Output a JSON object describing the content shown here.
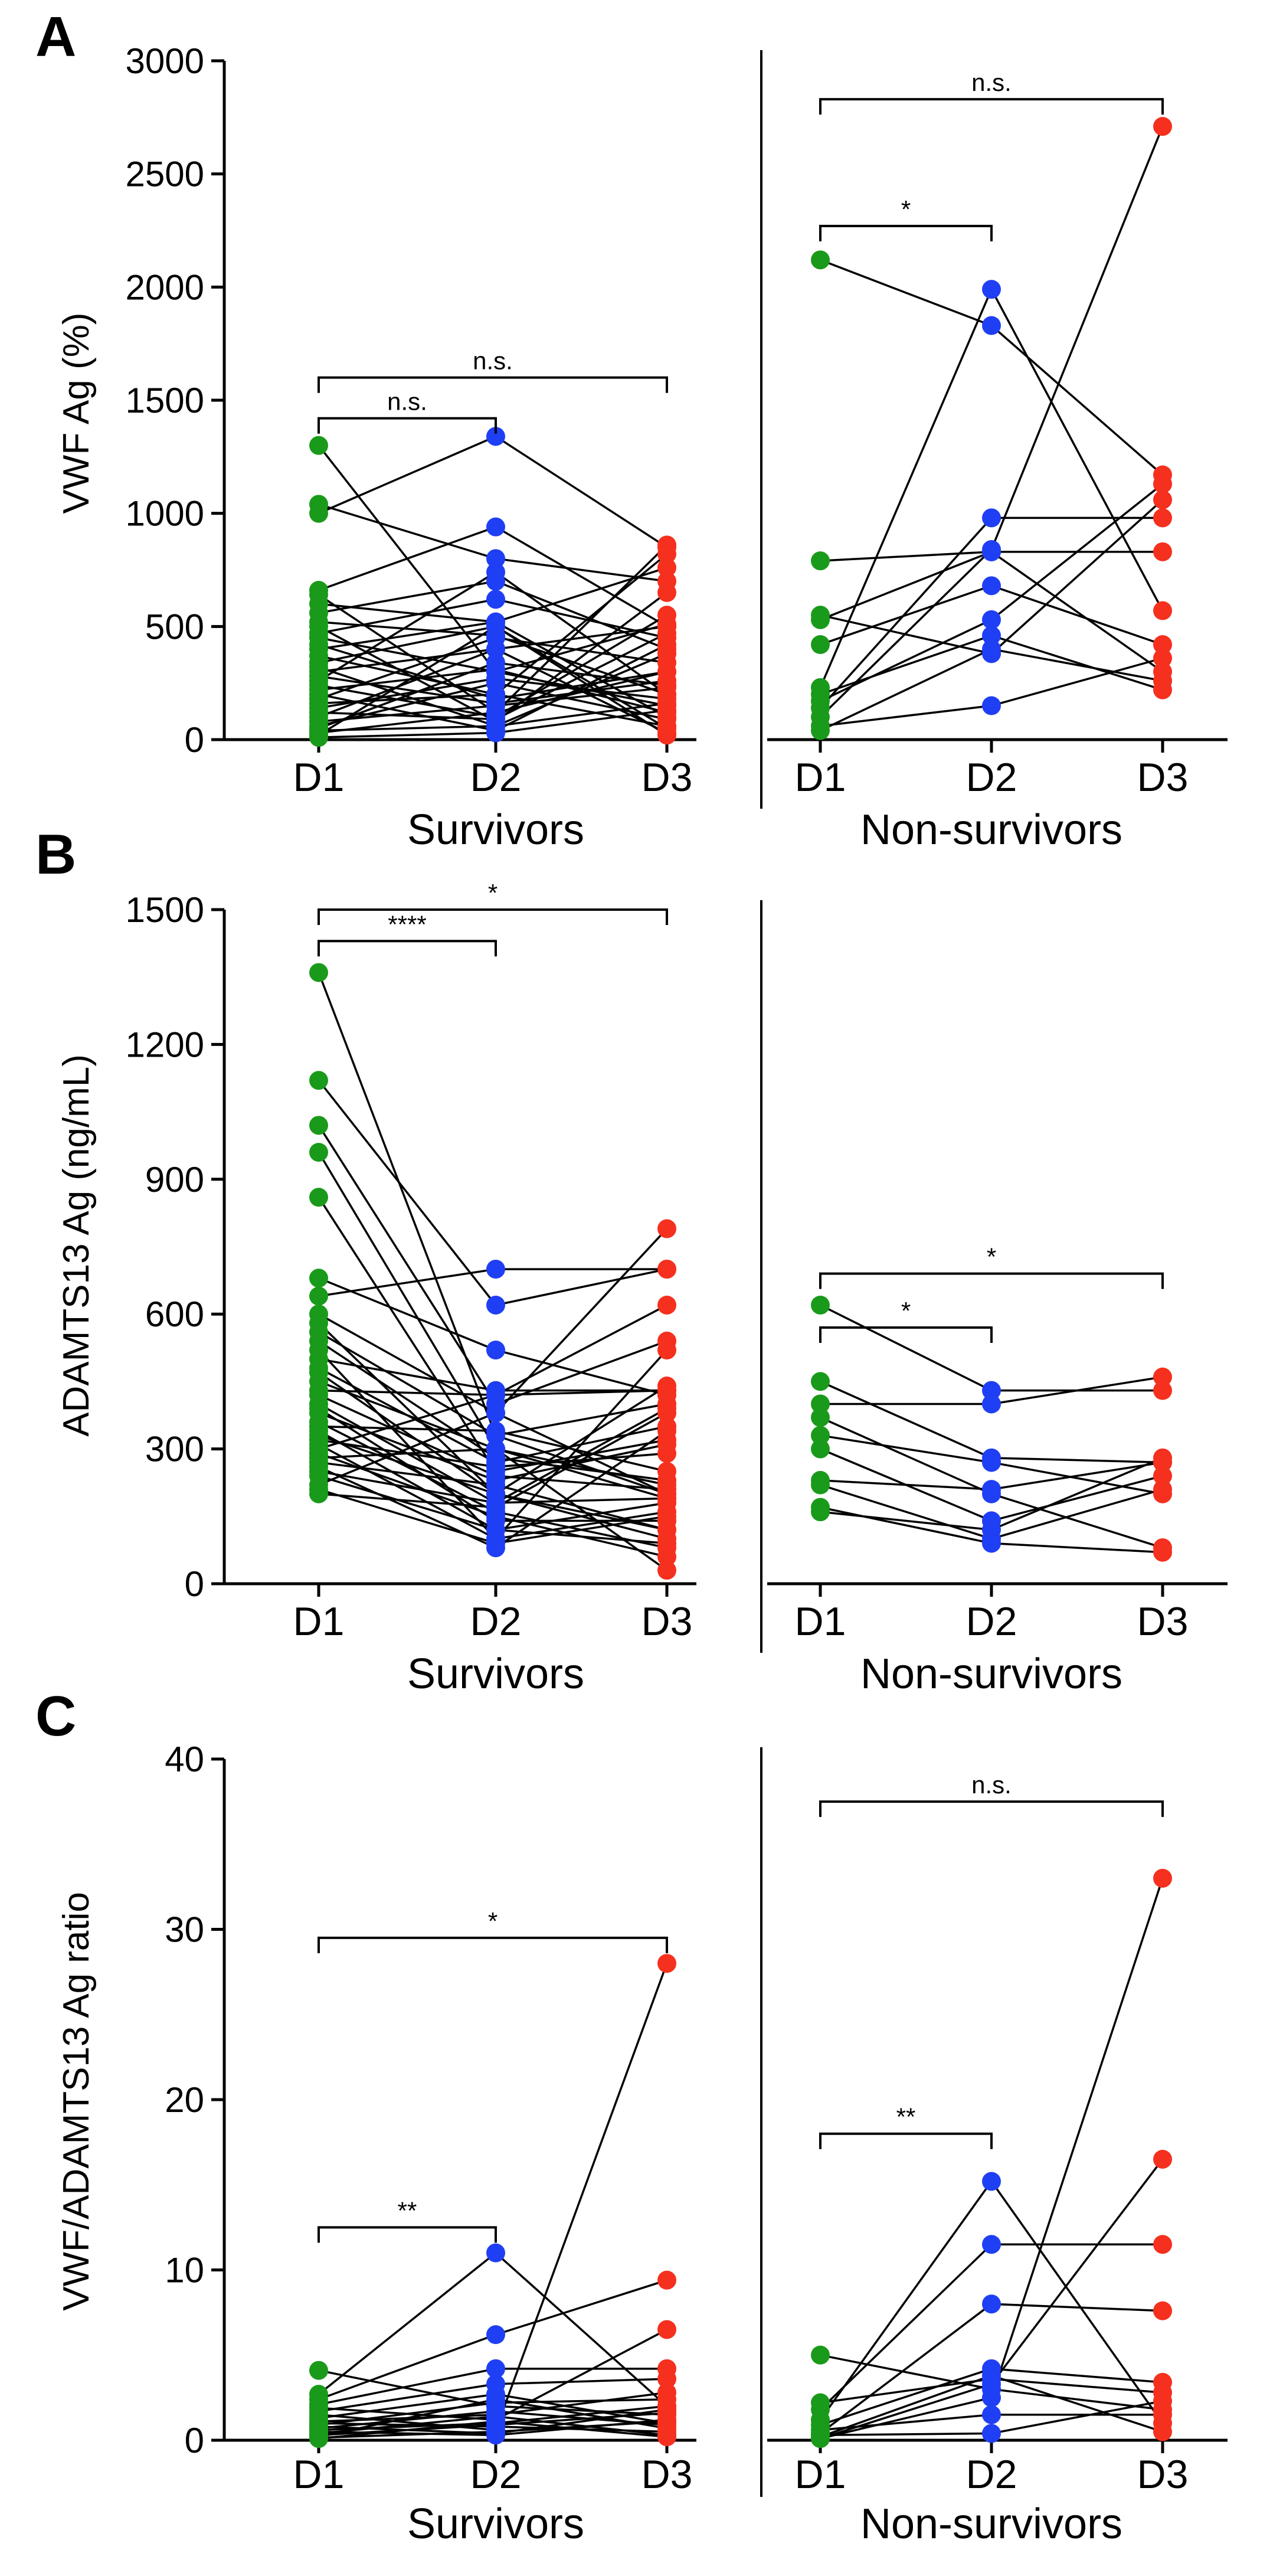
{
  "figure": {
    "colors": {
      "D1": "#1a9a1a",
      "D2": "#1f3ff5",
      "D3": "#f5301e",
      "lines": "#000000"
    }
  },
  "chart_data": [
    {
      "panel": "A",
      "type": "scatter",
      "ylabel": "VWF Ag (%)",
      "ylim": [
        0,
        3000
      ],
      "yticks": [
        0,
        500,
        1000,
        1500,
        2000,
        2500,
        3000
      ],
      "categories": [
        "D1",
        "D2",
        "D3"
      ],
      "groups": [
        {
          "name": "Survivors",
          "pairs": [
            [
              1300,
              300,
              150
            ],
            [
              1040,
              800,
              700
            ],
            [
              1000,
              1340,
              850
            ],
            [
              660,
              940,
              500
            ],
            [
              640,
              120,
              860
            ],
            [
              600,
              520,
              760
            ],
            [
              560,
              700,
              400
            ],
            [
              520,
              460,
              200
            ],
            [
              500,
              80,
              650
            ],
            [
              470,
              620,
              450
            ],
            [
              450,
              300,
              510
            ],
            [
              420,
              180,
              300
            ],
            [
              400,
              520,
              100
            ],
            [
              370,
              200,
              820
            ],
            [
              340,
              500,
              50
            ],
            [
              320,
              60,
              380
            ],
            [
              300,
              400,
              500
            ],
            [
              280,
              160,
              260
            ],
            [
              260,
              740,
              200
            ],
            [
              240,
              100,
              550
            ],
            [
              220,
              310,
              120
            ],
            [
              200,
              40,
              420
            ],
            [
              180,
              450,
              340
            ],
            [
              160,
              200,
              60
            ],
            [
              140,
              270,
              180
            ],
            [
              120,
              90,
              470
            ],
            [
              100,
              400,
              30
            ],
            [
              80,
              150,
              230
            ],
            [
              60,
              250,
              90
            ],
            [
              40,
              60,
              160
            ],
            [
              30,
              120,
              300
            ],
            [
              20,
              500,
              20
            ],
            [
              10,
              30,
              130
            ],
            [
              50,
              340,
              240
            ]
          ],
          "significance": [
            {
              "from": "D1",
              "to": "D2",
              "label": "n.s.",
              "y": 1420
            },
            {
              "from": "D1",
              "to": "D3",
              "label": "n.s.",
              "y": 1600
            }
          ]
        },
        {
          "name": "Non-survivors",
          "pairs": [
            [
              2120,
              1830,
              1170
            ],
            [
              790,
              830,
              830
            ],
            [
              550,
              380,
              1060
            ],
            [
              530,
              830,
              300
            ],
            [
              420,
              680,
              420
            ],
            [
              230,
              1990,
              570
            ],
            [
              200,
              460,
              220
            ],
            [
              170,
              530,
              1130
            ],
            [
              140,
              980,
              980
            ],
            [
              100,
              840,
              2710
            ],
            [
              60,
              150,
              360
            ],
            [
              40,
              400,
              260
            ]
          ],
          "significance": [
            {
              "from": "D1",
              "to": "D2",
              "label": "*",
              "y": 2270
            },
            {
              "from": "D1",
              "to": "D3",
              "label": "n.s.",
              "y": 2830
            }
          ]
        }
      ]
    },
    {
      "panel": "B",
      "type": "scatter",
      "ylabel": "ADAMTS13 Ag (ng/mL)",
      "ylim": [
        0,
        1500
      ],
      "yticks": [
        0,
        300,
        600,
        900,
        1200,
        1500
      ],
      "categories": [
        "D1",
        "D2",
        "D3"
      ],
      "groups": [
        {
          "name": "Survivors",
          "pairs": [
            [
              1360,
              330,
              200
            ],
            [
              1120,
              620,
              700
            ],
            [
              1020,
              400,
              540
            ],
            [
              960,
              300,
              190
            ],
            [
              860,
              250,
              320
            ],
            [
              680,
              520,
              420
            ],
            [
              640,
              700,
              700
            ],
            [
              600,
              380,
              790
            ],
            [
              580,
              200,
              100
            ],
            [
              560,
              330,
              400
            ],
            [
              540,
              280,
              230
            ],
            [
              520,
              100,
              520
            ],
            [
              500,
              430,
              430
            ],
            [
              480,
              270,
              350
            ],
            [
              470,
              200,
              120
            ],
            [
              450,
              300,
              30
            ],
            [
              430,
              420,
              620
            ],
            [
              420,
              240,
              210
            ],
            [
              400,
              180,
              390
            ],
            [
              390,
              140,
              140
            ],
            [
              380,
              230,
              310
            ],
            [
              360,
              160,
              80
            ],
            [
              350,
              340,
              250
            ],
            [
              340,
              120,
              180
            ],
            [
              330,
              200,
              440
            ],
            [
              320,
              260,
              290
            ],
            [
              310,
              100,
              160
            ],
            [
              300,
              420,
              430
            ],
            [
              290,
              150,
              60
            ],
            [
              280,
              300,
              220
            ],
            [
              270,
              220,
              120
            ],
            [
              260,
              80,
              340
            ],
            [
              250,
              180,
              190
            ],
            [
              240,
              120,
              90
            ],
            [
              220,
              380,
              200
            ],
            [
              210,
              90,
              150
            ],
            [
              200,
              170,
              380
            ]
          ],
          "significance": [
            {
              "from": "D1",
              "to": "D2",
              "label": "****",
              "y": 1430
            },
            {
              "from": "D1",
              "to": "D3",
              "label": "*",
              "y": 1500
            }
          ]
        },
        {
          "name": "Non-survivors",
          "pairs": [
            [
              620,
              430,
              430
            ],
            [
              450,
              280,
              270
            ],
            [
              400,
              400,
              460
            ],
            [
              370,
              200,
              80
            ],
            [
              330,
              270,
              200
            ],
            [
              300,
              140,
              240
            ],
            [
              230,
              210,
              270
            ],
            [
              220,
              100,
              210
            ],
            [
              170,
              90,
              70
            ],
            [
              160,
              120,
              280
            ]
          ],
          "significance": [
            {
              "from": "D1",
              "to": "D2",
              "label": "*",
              "y": 570
            },
            {
              "from": "D1",
              "to": "D3",
              "label": "*",
              "y": 690
            }
          ]
        }
      ]
    },
    {
      "panel": "C",
      "type": "scatter",
      "ylabel": "VWF/ADAMTS13 Ag ratio",
      "ylim": [
        0,
        40
      ],
      "yticks": [
        0,
        10,
        20,
        30,
        40
      ],
      "categories": [
        "D1",
        "D2",
        "D3"
      ],
      "groups": [
        {
          "name": "Survivors",
          "pairs": [
            [
              4.1,
              2.0,
              1.5
            ],
            [
              2.7,
              11.0,
              2.0
            ],
            [
              2.4,
              6.2,
              9.4
            ],
            [
              2.1,
              4.2,
              4.2
            ],
            [
              1.9,
              1.2,
              6.5
            ],
            [
              1.7,
              3.3,
              3.6
            ],
            [
              1.5,
              0.6,
              28.0
            ],
            [
              1.3,
              2.7,
              1.0
            ],
            [
              1.1,
              1.5,
              2.8
            ],
            [
              1.0,
              0.8,
              0.5
            ],
            [
              0.9,
              2.2,
              2.4
            ],
            [
              0.8,
              0.4,
              1.8
            ],
            [
              0.7,
              1.7,
              0.9
            ],
            [
              0.6,
              1.0,
              2.0
            ],
            [
              0.5,
              0.3,
              1.2
            ],
            [
              0.4,
              1.4,
              0.3
            ],
            [
              0.3,
              0.9,
              1.6
            ],
            [
              0.2,
              2.4,
              0.7
            ],
            [
              0.15,
              0.5,
              1.1
            ],
            [
              0.1,
              1.1,
              0.2
            ]
          ],
          "significance": [
            {
              "from": "D1",
              "to": "D2",
              "label": "**",
              "y": 12.5
            },
            {
              "from": "D1",
              "to": "D3",
              "label": "*",
              "y": 29.5
            }
          ]
        },
        {
          "name": "Non-survivors",
          "pairs": [
            [
              5.0,
              3.0,
              1.8
            ],
            [
              2.2,
              3.6,
              2.8
            ],
            [
              1.8,
              11.5,
              11.5
            ],
            [
              1.2,
              15.2,
              1.0
            ],
            [
              0.9,
              4.2,
              3.4
            ],
            [
              0.6,
              1.5,
              1.5
            ],
            [
              0.4,
              8.0,
              7.6
            ],
            [
              0.3,
              0.4,
              2.3
            ],
            [
              0.2,
              3.8,
              0.5
            ],
            [
              0.1,
              2.5,
              33.0
            ],
            [
              0.1,
              3.3,
              16.5
            ]
          ],
          "significance": [
            {
              "from": "D1",
              "to": "D2",
              "label": "**",
              "y": 18.0
            },
            {
              "from": "D1",
              "to": "D3",
              "label": "n.s.",
              "y": 37.5
            }
          ]
        }
      ]
    }
  ]
}
